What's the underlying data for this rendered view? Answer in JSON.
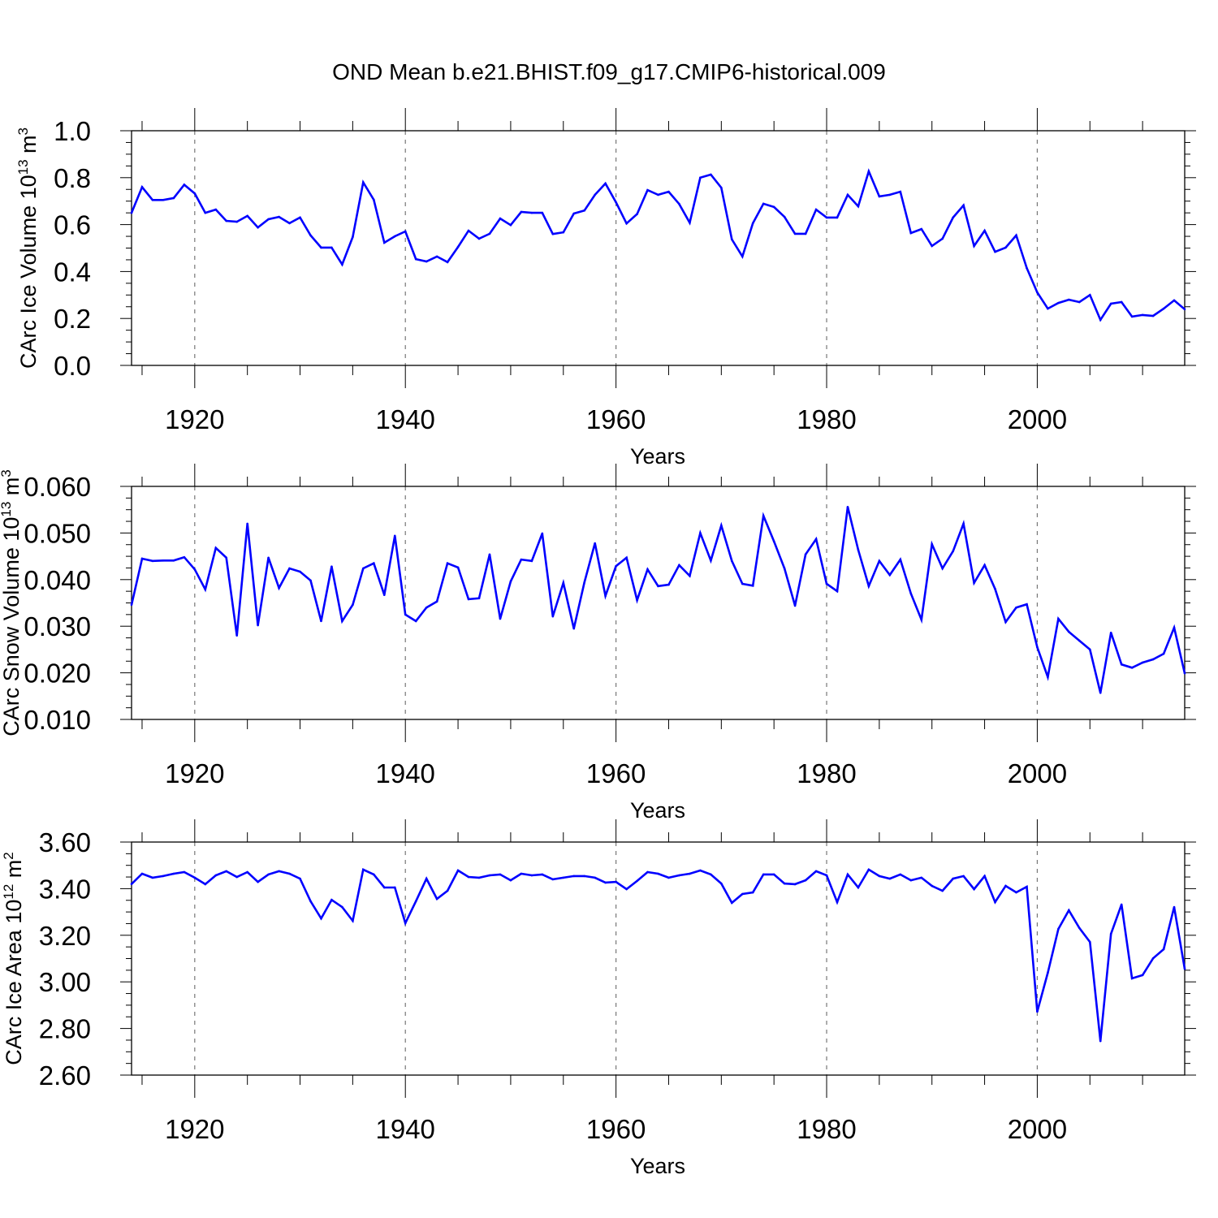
{
  "title": "OND Mean b.e21.BHIST.f09_g17.CMIP6-historical.009",
  "line_color": "#0000ff",
  "chart_data": [
    {
      "type": "line",
      "xlabel": "Years",
      "ylabel": {
        "text": "CArc Ice Volume 10",
        "exp": "13",
        "unit": " m",
        "unit_exp": "3"
      },
      "xlim": [
        1914,
        2014
      ],
      "ylim": [
        0.0,
        1.0
      ],
      "xtick_labels": [
        "1920",
        "1940",
        "1960",
        "1980",
        "2000"
      ],
      "ytick_labels": [
        "0.0",
        "0.2",
        "0.4",
        "0.6",
        "0.8",
        "1.0"
      ],
      "grid": "dashed vertical at labeled years",
      "x": [
        1914,
        1915,
        1916,
        1917,
        1918,
        1919,
        1920,
        1921,
        1922,
        1923,
        1924,
        1925,
        1926,
        1927,
        1928,
        1929,
        1930,
        1931,
        1932,
        1933,
        1934,
        1935,
        1936,
        1937,
        1938,
        1939,
        1940,
        1941,
        1942,
        1943,
        1944,
        1945,
        1946,
        1947,
        1948,
        1949,
        1950,
        1951,
        1952,
        1953,
        1954,
        1955,
        1956,
        1957,
        1958,
        1959,
        1960,
        1961,
        1962,
        1963,
        1964,
        1965,
        1966,
        1967,
        1968,
        1969,
        1970,
        1971,
        1972,
        1973,
        1974,
        1975,
        1976,
        1977,
        1978,
        1979,
        1980,
        1981,
        1982,
        1983,
        1984,
        1985,
        1986,
        1987,
        1988,
        1989,
        1990,
        1991,
        1992,
        1993,
        1994,
        1995,
        1996,
        1997,
        1998,
        1999,
        2000,
        2001,
        2002,
        2003,
        2004,
        2005,
        2006,
        2007,
        2008,
        2009,
        2010,
        2011,
        2012,
        2013,
        2014
      ],
      "values": [
        0.65,
        0.76,
        0.705,
        0.705,
        0.713,
        0.77,
        0.733,
        0.65,
        0.664,
        0.616,
        0.612,
        0.637,
        0.588,
        0.623,
        0.633,
        0.606,
        0.63,
        0.554,
        0.502,
        0.502,
        0.43,
        0.547,
        0.78,
        0.706,
        0.523,
        0.55,
        0.571,
        0.453,
        0.443,
        0.464,
        0.44,
        0.505,
        0.574,
        0.54,
        0.561,
        0.626,
        0.598,
        0.654,
        0.65,
        0.65,
        0.56,
        0.567,
        0.647,
        0.66,
        0.727,
        0.775,
        0.695,
        0.605,
        0.645,
        0.747,
        0.727,
        0.74,
        0.688,
        0.608,
        0.8,
        0.813,
        0.757,
        0.537,
        0.464,
        0.606,
        0.689,
        0.675,
        0.633,
        0.561,
        0.561,
        0.664,
        0.63,
        0.63,
        0.727,
        0.678,
        0.827,
        0.72,
        0.727,
        0.74,
        0.564,
        0.581,
        0.509,
        0.54,
        0.63,
        0.682,
        0.509,
        0.574,
        0.484,
        0.502,
        0.554,
        0.415,
        0.311,
        0.242,
        0.266,
        0.28,
        0.27,
        0.3,
        0.194,
        0.263,
        0.27,
        0.208,
        0.215,
        0.211,
        0.242,
        0.277,
        0.239
      ]
    },
    {
      "type": "line",
      "xlabel": "Years",
      "ylabel": {
        "text": "CArc Snow Volume 10",
        "exp": "13",
        "unit": " m",
        "unit_exp": "3"
      },
      "xlim": [
        1914,
        2014
      ],
      "ylim": [
        0.01,
        0.06
      ],
      "xtick_labels": [
        "1920",
        "1940",
        "1960",
        "1980",
        "2000"
      ],
      "ytick_labels": [
        "0.010",
        "0.020",
        "0.030",
        "0.040",
        "0.050",
        "0.060"
      ],
      "grid": "dashed vertical at labeled years",
      "x": [
        1914,
        1915,
        1916,
        1917,
        1918,
        1919,
        1920,
        1921,
        1922,
        1923,
        1924,
        1925,
        1926,
        1927,
        1928,
        1929,
        1930,
        1931,
        1932,
        1933,
        1934,
        1935,
        1936,
        1937,
        1938,
        1939,
        1940,
        1941,
        1942,
        1943,
        1944,
        1945,
        1946,
        1947,
        1948,
        1949,
        1950,
        1951,
        1952,
        1953,
        1954,
        1955,
        1956,
        1957,
        1958,
        1959,
        1960,
        1961,
        1962,
        1963,
        1964,
        1965,
        1966,
        1967,
        1968,
        1969,
        1970,
        1971,
        1972,
        1973,
        1974,
        1975,
        1976,
        1977,
        1978,
        1979,
        1980,
        1981,
        1982,
        1983,
        1984,
        1985,
        1986,
        1987,
        1988,
        1989,
        1990,
        1991,
        1992,
        1993,
        1994,
        1995,
        1996,
        1997,
        1998,
        1999,
        2000,
        2001,
        2002,
        2003,
        2004,
        2005,
        2006,
        2007,
        2008,
        2009,
        2010,
        2011,
        2012,
        2013,
        2014
      ],
      "values": [
        0.0346,
        0.0445,
        0.044,
        0.0441,
        0.0441,
        0.0448,
        0.0422,
        0.0379,
        0.0468,
        0.0447,
        0.028,
        0.052,
        0.0302,
        0.0447,
        0.0382,
        0.0424,
        0.0417,
        0.0398,
        0.0311,
        0.0428,
        0.0311,
        0.0346,
        0.0424,
        0.0435,
        0.0367,
        0.0494,
        0.0325,
        0.0311,
        0.034,
        0.0353,
        0.0435,
        0.0426,
        0.0358,
        0.036,
        0.0454,
        0.0316,
        0.0396,
        0.0443,
        0.044,
        0.0499,
        0.0321,
        0.0393,
        0.0295,
        0.0394,
        0.0478,
        0.0365,
        0.0429,
        0.0447,
        0.0356,
        0.0422,
        0.0386,
        0.0389,
        0.0431,
        0.0408,
        0.05,
        0.0441,
        0.0516,
        0.044,
        0.0391,
        0.0387,
        0.0537,
        0.0482,
        0.0424,
        0.0344,
        0.0454,
        0.0487,
        0.0391,
        0.0375,
        0.0556,
        0.0464,
        0.0386,
        0.044,
        0.041,
        0.0443,
        0.037,
        0.0314,
        0.0476,
        0.0424,
        0.0461,
        0.052,
        0.0393,
        0.0431,
        0.038,
        0.0309,
        0.034,
        0.0347,
        0.0255,
        0.0191,
        0.0316,
        0.0288,
        0.0269,
        0.025,
        0.0157,
        0.0286,
        0.0218,
        0.0211,
        0.0222,
        0.0229,
        0.0241,
        0.0297,
        0.0199
      ]
    },
    {
      "type": "line",
      "xlabel": "Years",
      "ylabel": {
        "text": "CArc Ice Area 10",
        "exp": "12",
        "unit": " m",
        "unit_exp": "2"
      },
      "xlim": [
        1914,
        2014
      ],
      "ylim": [
        2.6,
        3.6
      ],
      "xtick_labels": [
        "1920",
        "1940",
        "1960",
        "1980",
        "2000"
      ],
      "ytick_labels": [
        "2.60",
        "2.80",
        "3.00",
        "3.20",
        "3.40",
        "3.60"
      ],
      "grid": "dashed vertical at labeled years",
      "x": [
        1914,
        1915,
        1916,
        1917,
        1918,
        1919,
        1920,
        1921,
        1922,
        1923,
        1924,
        1925,
        1926,
        1927,
        1928,
        1929,
        1930,
        1931,
        1932,
        1933,
        1934,
        1935,
        1936,
        1937,
        1938,
        1939,
        1940,
        1941,
        1942,
        1943,
        1944,
        1945,
        1946,
        1947,
        1948,
        1949,
        1950,
        1951,
        1952,
        1953,
        1954,
        1955,
        1956,
        1957,
        1958,
        1959,
        1960,
        1961,
        1962,
        1963,
        1964,
        1965,
        1966,
        1967,
        1968,
        1969,
        1970,
        1971,
        1972,
        1973,
        1974,
        1975,
        1976,
        1977,
        1978,
        1979,
        1980,
        1981,
        1982,
        1983,
        1984,
        1985,
        1986,
        1987,
        1988,
        1989,
        1990,
        1991,
        1992,
        1993,
        1994,
        1995,
        1996,
        1997,
        1998,
        1999,
        2000,
        2001,
        2002,
        2003,
        2004,
        2005,
        2006,
        2007,
        2008,
        2009,
        2010,
        2011,
        2012,
        2013,
        2014
      ],
      "values": [
        3.42,
        3.464,
        3.447,
        3.454,
        3.464,
        3.471,
        3.447,
        3.419,
        3.457,
        3.475,
        3.45,
        3.471,
        3.429,
        3.461,
        3.475,
        3.464,
        3.443,
        3.346,
        3.272,
        3.352,
        3.321,
        3.262,
        3.482,
        3.461,
        3.405,
        3.405,
        3.252,
        3.346,
        3.443,
        3.356,
        3.391,
        3.478,
        3.45,
        3.447,
        3.457,
        3.461,
        3.436,
        3.464,
        3.457,
        3.461,
        3.44,
        3.447,
        3.454,
        3.454,
        3.447,
        3.426,
        3.429,
        3.398,
        3.433,
        3.471,
        3.464,
        3.447,
        3.457,
        3.464,
        3.478,
        3.461,
        3.422,
        3.339,
        3.377,
        3.384,
        3.461,
        3.461,
        3.422,
        3.419,
        3.436,
        3.475,
        3.457,
        3.342,
        3.461,
        3.405,
        3.482,
        3.454,
        3.443,
        3.461,
        3.436,
        3.447,
        3.412,
        3.391,
        3.443,
        3.454,
        3.398,
        3.454,
        3.342,
        3.412,
        3.384,
        3.408,
        2.872,
        3.039,
        3.227,
        3.307,
        3.231,
        3.171,
        2.746,
        3.206,
        3.332,
        3.015,
        3.029,
        3.101,
        3.14,
        3.321,
        3.056
      ]
    }
  ]
}
